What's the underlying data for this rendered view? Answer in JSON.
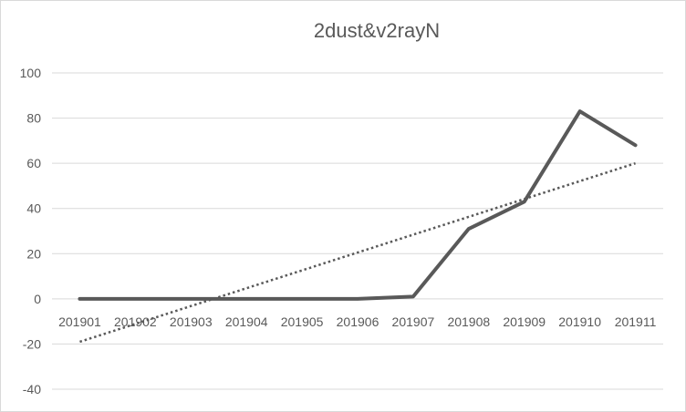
{
  "chart_data": {
    "type": "line",
    "title": "2dust&v2rayN",
    "xlabel": "",
    "ylabel": "",
    "categories": [
      "201901",
      "201902",
      "201903",
      "201904",
      "201905",
      "201906",
      "201907",
      "201908",
      "201909",
      "201910",
      "201911"
    ],
    "series": [
      {
        "values": [
          0,
          0,
          0,
          0,
          0,
          0,
          1,
          31,
          43,
          83,
          68
        ]
      }
    ],
    "trendline": {
      "type": "linear",
      "style": "dotted",
      "start": -19,
      "end": 60
    },
    "ylim": [
      -40,
      100
    ],
    "yticks": [
      -40,
      -20,
      0,
      20,
      40,
      60,
      80,
      100
    ],
    "grid": true,
    "legend": "none",
    "colors": {
      "series": "#595959",
      "trend": "#595959",
      "grid": "#d9d9d9",
      "text": "#595959"
    }
  }
}
